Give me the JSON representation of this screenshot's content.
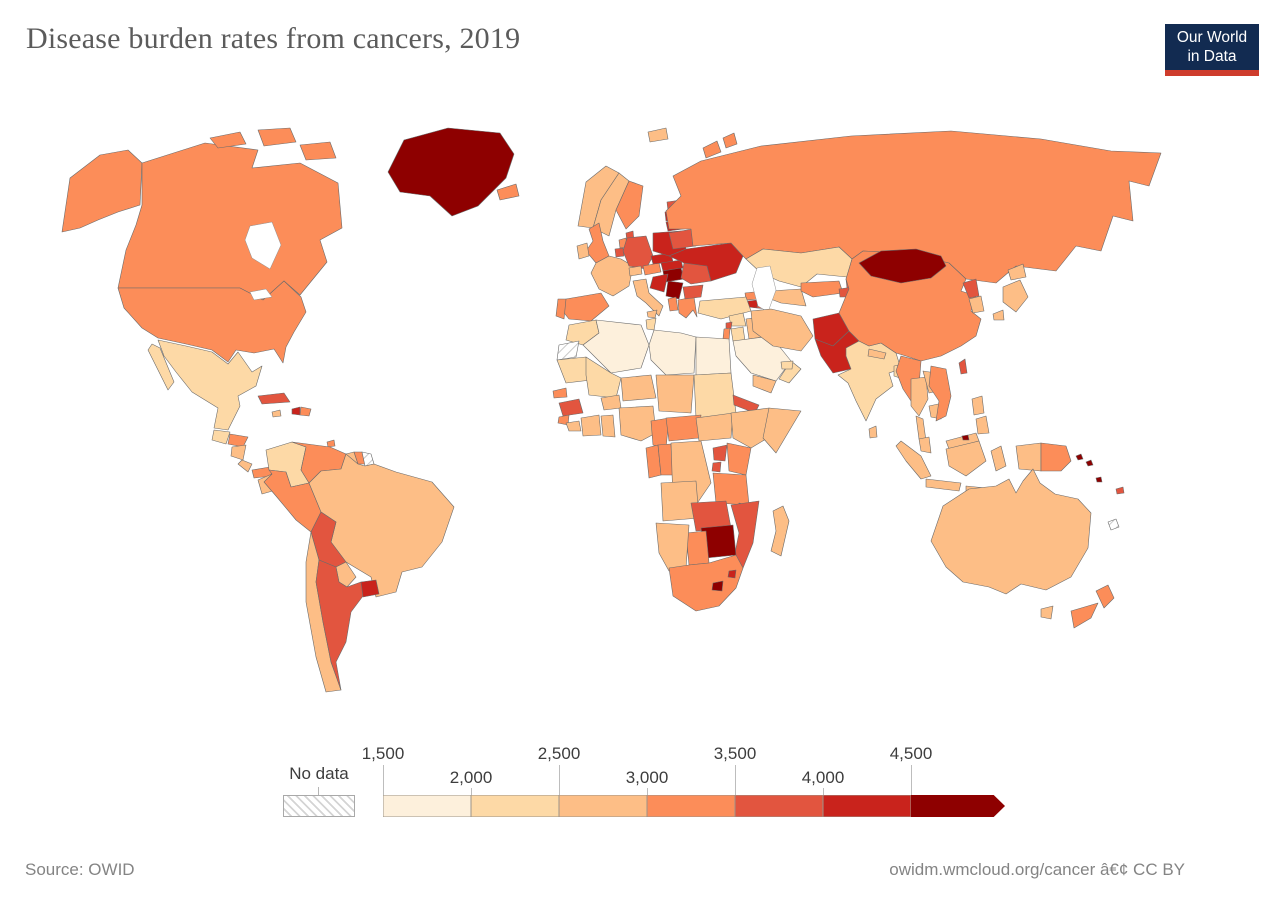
{
  "header": {
    "title": "Disease burden rates from cancers, 2019"
  },
  "logo": {
    "line1": "Our World",
    "line2": "in Data",
    "bg": "#122B51",
    "accent": "#CE3C2C"
  },
  "legend": {
    "no_data_label": "No data",
    "colors": [
      "#FDF0DC",
      "#FDD9A6",
      "#FDBE86",
      "#FC8D59",
      "#E2553F",
      "#C9231C",
      "#8E0000"
    ],
    "ticks": [
      {
        "label": "1,500",
        "row": "top"
      },
      {
        "label": "2,000",
        "row": "bottom"
      },
      {
        "label": "2,500",
        "row": "top"
      },
      {
        "label": "3,000",
        "row": "bottom"
      },
      {
        "label": "3,500",
        "row": "top"
      },
      {
        "label": "4,000",
        "row": "bottom"
      },
      {
        "label": "4,500",
        "row": "top"
      }
    ]
  },
  "footer": {
    "source": "Source: OWID",
    "credit": "owidm.wmcloud.org/cancer â€¢ CC BY"
  },
  "chart_data": {
    "type": "choropleth_map",
    "title": "Disease burden rates from cancers, 2019",
    "year": 2019,
    "legend_ticks": [
      1500,
      2000,
      2500,
      3000,
      3500,
      4000,
      4500
    ],
    "bin_labels": [
      "1,500–2,000",
      "2,000–2,500",
      "2,500–3,000",
      "3,000–3,500",
      "3,500–4,000",
      "4,000–4,500",
      "> 4,500",
      "No data"
    ],
    "regions": {
      "united-states": {
        "name": "United States",
        "bin": 3
      },
      "canada": {
        "name": "Canada",
        "bin": 3
      },
      "greenland": {
        "name": "Greenland",
        "bin": 6
      },
      "mexico": {
        "name": "Mexico",
        "bin": 1
      },
      "guatemala": {
        "name": "Guatemala",
        "bin": 1
      },
      "honduras": {
        "name": "Honduras",
        "bin": 3
      },
      "nicaragua": {
        "name": "Nicaragua",
        "bin": 2
      },
      "costa-rica": {
        "name": "Costa Rica",
        "bin": 2
      },
      "panama": {
        "name": "Panama",
        "bin": 3
      },
      "cuba": {
        "name": "Cuba",
        "bin": 4
      },
      "jamaica": {
        "name": "Jamaica",
        "bin": 2
      },
      "haiti": {
        "name": "Haiti",
        "bin": 5
      },
      "dominican-republic": {
        "name": "Dominican Republic",
        "bin": 3
      },
      "trinidad-and-tobago": {
        "name": "Trinidad and Tobago",
        "bin": 3
      },
      "colombia": {
        "name": "Colombia",
        "bin": 1
      },
      "venezuela": {
        "name": "Venezuela",
        "bin": 3
      },
      "guyana": {
        "name": "Guyana",
        "bin": 2
      },
      "suriname": {
        "name": "Suriname",
        "bin": 3
      },
      "french-guiana": {
        "name": "French Guiana",
        "bin": -1
      },
      "ecuador": {
        "name": "Ecuador",
        "bin": 2
      },
      "peru": {
        "name": "Peru",
        "bin": 3
      },
      "brazil": {
        "name": "Brazil",
        "bin": 2
      },
      "bolivia": {
        "name": "Bolivia",
        "bin": 4
      },
      "paraguay": {
        "name": "Paraguay",
        "bin": 2
      },
      "chile": {
        "name": "Chile",
        "bin": 2
      },
      "argentina": {
        "name": "Argentina",
        "bin": 4
      },
      "uruguay": {
        "name": "Uruguay",
        "bin": 5
      },
      "iceland": {
        "name": "Iceland",
        "bin": 3
      },
      "norway": {
        "name": "Norway",
        "bin": 2
      },
      "sweden": {
        "name": "Sweden",
        "bin": 2
      },
      "finland": {
        "name": "Finland",
        "bin": 3
      },
      "united-kingdom": {
        "name": "United Kingdom",
        "bin": 3
      },
      "ireland": {
        "name": "Ireland",
        "bin": 2
      },
      "denmark": {
        "name": "Denmark",
        "bin": 4
      },
      "netherlands": {
        "name": "Netherlands",
        "bin": 3
      },
      "belgium": {
        "name": "Belgium",
        "bin": 4
      },
      "france": {
        "name": "France",
        "bin": 2
      },
      "spain": {
        "name": "Spain",
        "bin": 3
      },
      "portugal": {
        "name": "Portugal",
        "bin": 3
      },
      "germany": {
        "name": "Germany",
        "bin": 4
      },
      "switzerland": {
        "name": "Switzerland",
        "bin": 2
      },
      "austria": {
        "name": "Austria",
        "bin": 3
      },
      "czechia": {
        "name": "Czechia",
        "bin": 5
      },
      "slovakia": {
        "name": "Slovakia",
        "bin": 5
      },
      "poland": {
        "name": "Poland",
        "bin": 5
      },
      "hungary": {
        "name": "Hungary",
        "bin": 6
      },
      "croatia": {
        "name": "Croatia",
        "bin": 5
      },
      "serbia": {
        "name": "Serbia",
        "bin": 6
      },
      "albania": {
        "name": "Albania",
        "bin": 3
      },
      "greece": {
        "name": "Greece",
        "bin": 3
      },
      "bulgaria": {
        "name": "Bulgaria",
        "bin": 4
      },
      "romania": {
        "name": "Romania",
        "bin": 4
      },
      "italy": {
        "name": "Italy",
        "bin": 2
      },
      "ukraine": {
        "name": "Ukraine",
        "bin": 5
      },
      "belarus": {
        "name": "Belarus",
        "bin": 4
      },
      "lithuania": {
        "name": "Lithuania",
        "bin": 5
      },
      "latvia": {
        "name": "Latvia",
        "bin": 5
      },
      "estonia": {
        "name": "Estonia",
        "bin": 4
      },
      "russia": {
        "name": "Russia",
        "bin": 3
      },
      "kazakhstan": {
        "name": "Kazakhstan",
        "bin": 1
      },
      "turkmenistan": {
        "name": "Turkmenistan",
        "bin": 2
      },
      "uzbekistan": {
        "name": "Uzbekistan",
        "bin": 3
      },
      "kyrgyzstan": {
        "name": "Kyrgyzstan",
        "bin": 4
      },
      "tajikistan": {
        "name": "Tajikistan",
        "bin": 4
      },
      "georgia": {
        "name": "Georgia",
        "bin": 3
      },
      "armenia": {
        "name": "Armenia",
        "bin": 5
      },
      "azerbaijan": {
        "name": "Azerbaijan",
        "bin": 4
      },
      "turkey": {
        "name": "Turkey",
        "bin": 1
      },
      "syria": {
        "name": "Syria",
        "bin": 1
      },
      "iraq": {
        "name": "Iraq",
        "bin": 2
      },
      "lebanon": {
        "name": "Lebanon",
        "bin": 4
      },
      "israel": {
        "name": "Israel",
        "bin": 3
      },
      "jordan": {
        "name": "Jordan",
        "bin": 1
      },
      "saudi-arabia": {
        "name": "Saudi Arabia",
        "bin": 0
      },
      "yemen": {
        "name": "Yemen",
        "bin": 2
      },
      "oman": {
        "name": "Oman",
        "bin": 1
      },
      "united-arab-emirates": {
        "name": "United Arab Emirates",
        "bin": 1
      },
      "iran": {
        "name": "Iran",
        "bin": 2
      },
      "afghanistan": {
        "name": "Afghanistan",
        "bin": 5
      },
      "pakistan": {
        "name": "Pakistan",
        "bin": 5
      },
      "india": {
        "name": "India",
        "bin": 1
      },
      "nepal": {
        "name": "Nepal",
        "bin": 2
      },
      "bangladesh": {
        "name": "Bangladesh",
        "bin": 1
      },
      "sri-lanka": {
        "name": "Sri Lanka",
        "bin": 2
      },
      "china": {
        "name": "China",
        "bin": 3
      },
      "mongolia": {
        "name": "Mongolia",
        "bin": 6
      },
      "north-korea": {
        "name": "North Korea",
        "bin": 4
      },
      "south-korea": {
        "name": "South Korea",
        "bin": 2
      },
      "japan": {
        "name": "Japan",
        "bin": 2
      },
      "taiwan": {
        "name": "Taiwan",
        "bin": 4
      },
      "myanmar": {
        "name": "Myanmar",
        "bin": 3
      },
      "thailand": {
        "name": "Thailand",
        "bin": 2
      },
      "laos": {
        "name": "Laos",
        "bin": 2
      },
      "cambodia": {
        "name": "Cambodia",
        "bin": 2
      },
      "vietnam": {
        "name": "Vietnam",
        "bin": 3
      },
      "malaysia": {
        "name": "Malaysia",
        "bin": 2
      },
      "brunei": {
        "name": "Brunei",
        "bin": 6
      },
      "indonesia": {
        "name": "Indonesia",
        "bin": 2
      },
      "philippines": {
        "name": "Philippines",
        "bin": 2
      },
      "papua-new-guinea": {
        "name": "Papua New Guinea",
        "bin": 3
      },
      "solomon-islands": {
        "name": "Solomon Islands",
        "bin": 6
      },
      "vanuatu": {
        "name": "Vanuatu",
        "bin": 6
      },
      "fiji": {
        "name": "Fiji",
        "bin": 4
      },
      "new-caledonia": {
        "name": "New Caledonia",
        "bin": -1
      },
      "australia": {
        "name": "Australia",
        "bin": 2
      },
      "new-zealand": {
        "name": "New Zealand",
        "bin": 3
      },
      "morocco": {
        "name": "Morocco",
        "bin": 1
      },
      "western-sahara": {
        "name": "Western Sahara",
        "bin": -1
      },
      "algeria": {
        "name": "Algeria",
        "bin": 0
      },
      "tunisia": {
        "name": "Tunisia",
        "bin": 1
      },
      "libya": {
        "name": "Libya",
        "bin": 0
      },
      "egypt": {
        "name": "Egypt",
        "bin": 0
      },
      "mauritania": {
        "name": "Mauritania",
        "bin": 1
      },
      "mali": {
        "name": "Mali",
        "bin": 1
      },
      "burkina-faso": {
        "name": "Burkina Faso",
        "bin": 2
      },
      "niger": {
        "name": "Niger",
        "bin": 2
      },
      "chad": {
        "name": "Chad",
        "bin": 2
      },
      "sudan": {
        "name": "Sudan",
        "bin": 1
      },
      "eritrea": {
        "name": "Eritrea",
        "bin": 4
      },
      "senegal": {
        "name": "Senegal",
        "bin": 3
      },
      "guinea": {
        "name": "Guinea",
        "bin": 4
      },
      "sierra-leone": {
        "name": "Sierra Leone",
        "bin": 3
      },
      "liberia": {
        "name": "Liberia",
        "bin": 2
      },
      "ivory-coast": {
        "name": "Cote d'Ivoire",
        "bin": 2
      },
      "ghana": {
        "name": "Ghana",
        "bin": 2
      },
      "nigeria": {
        "name": "Nigeria",
        "bin": 2
      },
      "cameroon": {
        "name": "Cameroon",
        "bin": 3
      },
      "central-african-republic": {
        "name": "Central African Republic",
        "bin": 3
      },
      "south-sudan": {
        "name": "South Sudan",
        "bin": 2
      },
      "ethiopia": {
        "name": "Ethiopia",
        "bin": 2
      },
      "somalia": {
        "name": "Somalia",
        "bin": 2
      },
      "uganda": {
        "name": "Uganda",
        "bin": 4
      },
      "kenya": {
        "name": "Kenya",
        "bin": 3
      },
      "rwanda": {
        "name": "Rwanda",
        "bin": 4
      },
      "tanzania": {
        "name": "Tanzania",
        "bin": 3
      },
      "gabon": {
        "name": "Gabon",
        "bin": 3
      },
      "republic-of-congo": {
        "name": "Congo",
        "bin": 3
      },
      "dr-congo": {
        "name": "Democratic Republic of Congo",
        "bin": 2
      },
      "angola": {
        "name": "Angola",
        "bin": 2
      },
      "zambia": {
        "name": "Zambia",
        "bin": 4
      },
      "malawi": {
        "name": "Malawi",
        "bin": 4
      },
      "mozambique": {
        "name": "Mozambique",
        "bin": 4
      },
      "zimbabwe": {
        "name": "Zimbabwe",
        "bin": 6
      },
      "botswana": {
        "name": "Botswana",
        "bin": 3
      },
      "namibia": {
        "name": "Namibia",
        "bin": 2
      },
      "south-africa": {
        "name": "South Africa",
        "bin": 3
      },
      "lesotho": {
        "name": "Lesotho",
        "bin": 6
      },
      "eswatini": {
        "name": "Eswatini",
        "bin": 5
      },
      "madagascar": {
        "name": "Madagascar",
        "bin": 2
      }
    }
  }
}
